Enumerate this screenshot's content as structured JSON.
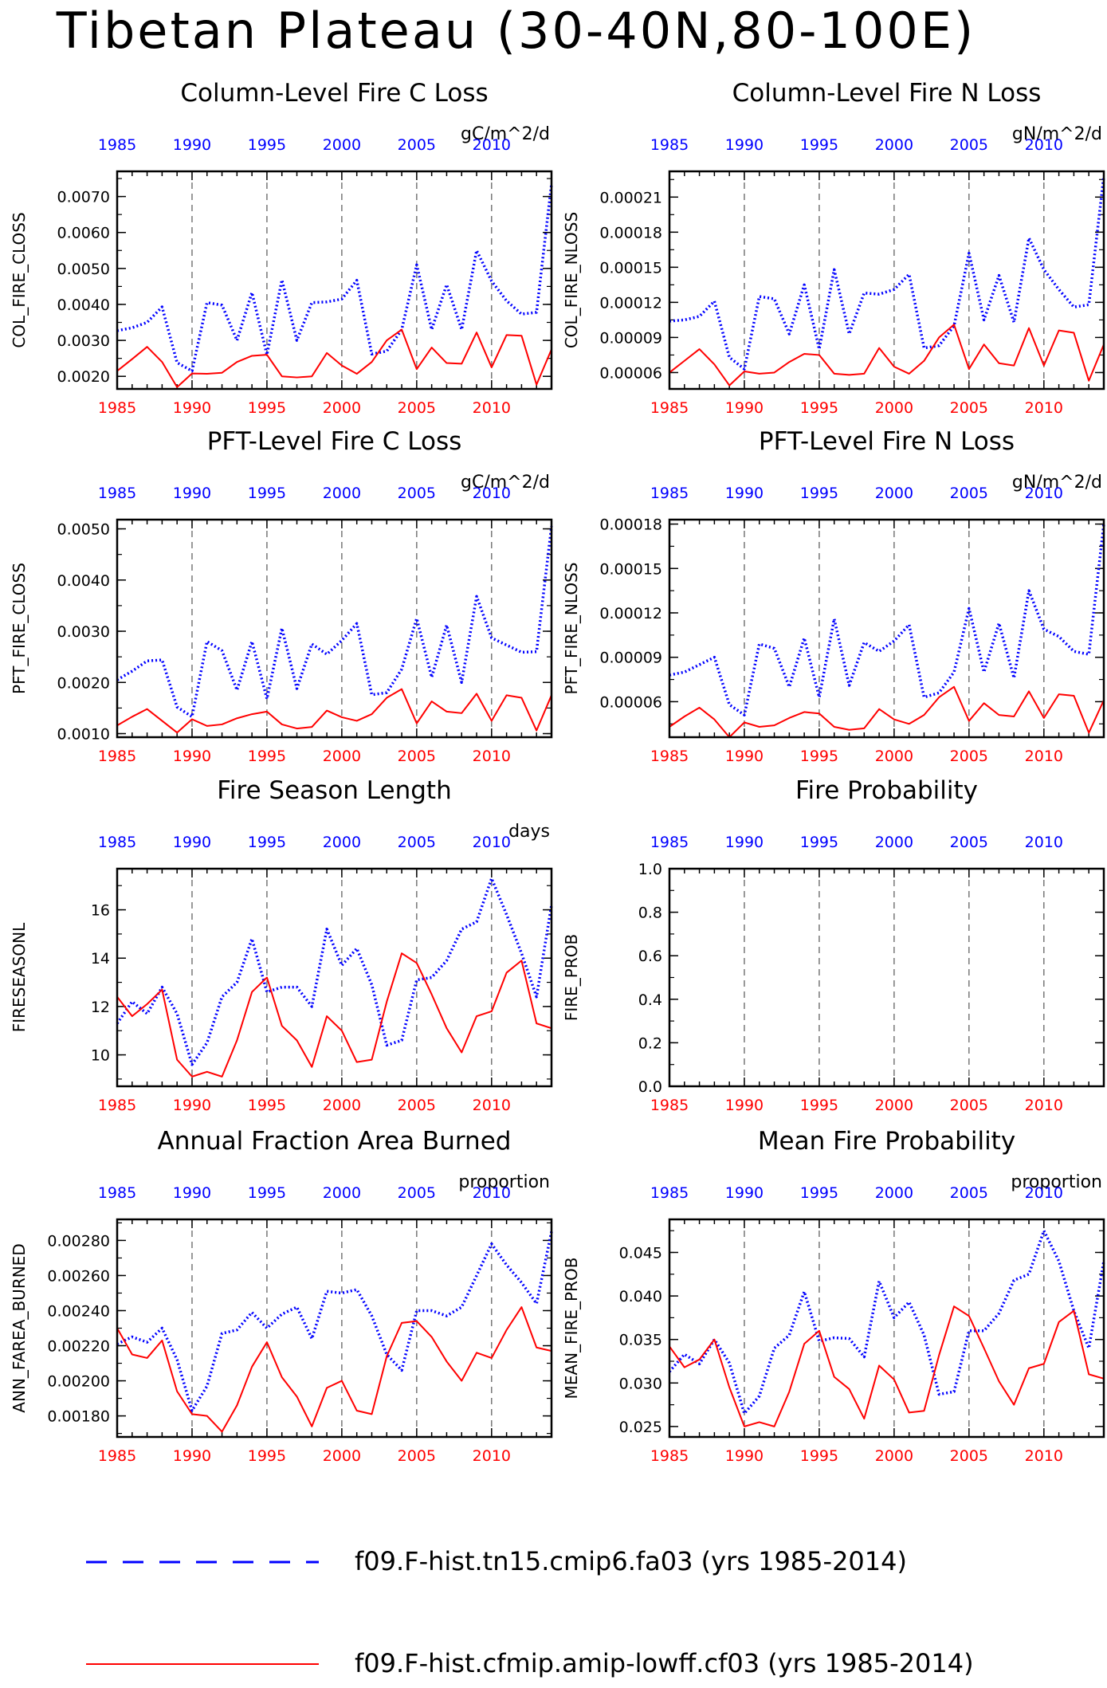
{
  "title": "Tibetan Plateau (30-40N,80-100E)",
  "years": [
    1985,
    1986,
    1987,
    1988,
    1989,
    1990,
    1991,
    1992,
    1993,
    1994,
    1995,
    1996,
    1997,
    1998,
    1999,
    2000,
    2001,
    2002,
    2003,
    2004,
    2005,
    2006,
    2007,
    2008,
    2009,
    2010,
    2011,
    2012,
    2013,
    2014
  ],
  "colors": {
    "case1": "#0000ff",
    "case2": "#ff0000",
    "axis": "#000000"
  },
  "legend": [
    {
      "label": "f09.F-hist.tn15.cmip6.fa03 (yrs 1985-2014)",
      "color": "#0000ff",
      "style": "dashed"
    },
    {
      "label": "f09.F-hist.cfmip.amip-lowff.cf03 (yrs 1985-2014)",
      "color": "#ff0000",
      "style": "solid"
    }
  ],
  "chart_data": [
    {
      "type": "line",
      "title": "Column-Level Fire C Loss",
      "units": "gC/m^2/d",
      "ylabel": "COL_FIRE_CLOSS",
      "xlim": [
        1985,
        2014
      ],
      "ylim": [
        0.00165,
        0.0077
      ],
      "yticks": [
        0.002,
        0.003,
        0.004,
        0.005,
        0.006,
        0.007
      ],
      "ytick_labels": [
        "0.0020",
        "0.0030",
        "0.0040",
        "0.0050",
        "0.0060",
        "0.0070"
      ],
      "xticks": [
        1985,
        1990,
        1995,
        2000,
        2005,
        2010
      ],
      "grid_x": [
        1990,
        1995,
        2000,
        2005,
        2010
      ],
      "series": [
        {
          "values": [
            0.00327,
            0.00335,
            0.0035,
            0.00393,
            0.00238,
            0.00215,
            0.00405,
            0.00398,
            0.003,
            0.00433,
            0.0026,
            0.00468,
            0.003,
            0.00405,
            0.00407,
            0.00415,
            0.00467,
            0.00262,
            0.0027,
            0.0033,
            0.0051,
            0.0033,
            0.00455,
            0.0033,
            0.0055,
            0.00465,
            0.0041,
            0.00373,
            0.00378,
            0.00735
          ]
        },
        {
          "values": [
            0.00215,
            0.00248,
            0.00282,
            0.0024,
            0.0017,
            0.00208,
            0.00207,
            0.0021,
            0.0024,
            0.00257,
            0.0026,
            0.002,
            0.00197,
            0.002,
            0.00265,
            0.0023,
            0.00207,
            0.0024,
            0.003,
            0.0033,
            0.0022,
            0.0028,
            0.00237,
            0.00235,
            0.00322,
            0.00225,
            0.00315,
            0.00313,
            0.00177,
            0.00275
          ]
        }
      ]
    },
    {
      "type": "line",
      "title": "Column-Level Fire N Loss",
      "units": "gN/m^2/d",
      "ylabel": "COL_FIRE_NLOSS",
      "xlim": [
        1985,
        2014
      ],
      "ylim": [
        4.6e-05,
        0.000232
      ],
      "yticks": [
        6e-05,
        9e-05,
        0.00012,
        0.00015,
        0.00018,
        0.00021
      ],
      "ytick_labels": [
        "0.00006",
        "0.00009",
        "0.00012",
        "0.00015",
        "0.00018",
        "0.00021"
      ],
      "xticks": [
        1985,
        1990,
        1995,
        2000,
        2005,
        2010
      ],
      "grid_x": [
        1990,
        1995,
        2000,
        2005,
        2010
      ],
      "series": [
        {
          "values": [
            0.000104,
            0.000105,
            0.000108,
            0.000121,
            7.3e-05,
            6.3e-05,
            0.000125,
            0.000123,
            9.3e-05,
            0.000135,
            8e-05,
            0.000148,
            9.3e-05,
            0.000128,
            0.000127,
            0.000131,
            0.000144,
            8.1e-05,
            8.3e-05,
            0.0001,
            0.000162,
            0.000105,
            0.000143,
            0.000103,
            0.000175,
            0.000148,
            0.000131,
            0.000116,
            0.000118,
            0.000228
          ]
        },
        {
          "values": [
            6e-05,
            7e-05,
            8e-05,
            6.7e-05,
            4.9e-05,
            6.1e-05,
            5.9e-05,
            6e-05,
            6.9e-05,
            7.6e-05,
            7.5e-05,
            5.9e-05,
            5.8e-05,
            5.9e-05,
            8.1e-05,
            6.5e-05,
            5.9e-05,
            7e-05,
            9e-05,
            0.000101,
            6.3e-05,
            8.4e-05,
            6.8e-05,
            6.6e-05,
            9.8e-05,
            6.6e-05,
            9.6e-05,
            9.4e-05,
            5.3e-05,
            8.4e-05
          ]
        }
      ]
    },
    {
      "type": "line",
      "title": "PFT-Level Fire C Loss",
      "units": "gC/m^2/d",
      "ylabel": "PFT_FIRE_CLOSS",
      "xlim": [
        1985,
        2014
      ],
      "ylim": [
        0.00093,
        0.00518
      ],
      "yticks": [
        0.001,
        0.002,
        0.003,
        0.004,
        0.005
      ],
      "ytick_labels": [
        "0.0010",
        "0.0020",
        "0.0030",
        "0.0040",
        "0.0050"
      ],
      "xticks": [
        1985,
        1990,
        1995,
        2000,
        2005,
        2010
      ],
      "grid_x": [
        1990,
        1995,
        2000,
        2005,
        2010
      ],
      "series": [
        {
          "values": [
            0.00205,
            0.00222,
            0.00242,
            0.00244,
            0.00152,
            0.00133,
            0.0028,
            0.00262,
            0.00185,
            0.0028,
            0.00168,
            0.00306,
            0.00188,
            0.00275,
            0.00255,
            0.00282,
            0.00315,
            0.00176,
            0.0018,
            0.00226,
            0.00325,
            0.0021,
            0.00312,
            0.002,
            0.00368,
            0.00287,
            0.00273,
            0.00259,
            0.0026,
            0.00505
          ]
        },
        {
          "values": [
            0.00116,
            0.00133,
            0.00148,
            0.00125,
            0.00102,
            0.00128,
            0.00115,
            0.00118,
            0.0013,
            0.00138,
            0.00143,
            0.00118,
            0.0011,
            0.00113,
            0.00145,
            0.00132,
            0.00125,
            0.00138,
            0.0017,
            0.00187,
            0.0012,
            0.00163,
            0.00143,
            0.0014,
            0.00178,
            0.00125,
            0.00175,
            0.0017,
            0.00106,
            0.00175
          ]
        }
      ]
    },
    {
      "type": "line",
      "title": "PFT-Level Fire N Loss",
      "units": "gN/m^2/d",
      "ylabel": "PFT_FIRE_NLOSS",
      "xlim": [
        1985,
        2014
      ],
      "ylim": [
        3.6e-05,
        0.000183
      ],
      "yticks": [
        6e-05,
        9e-05,
        0.00012,
        0.00015,
        0.00018
      ],
      "ytick_labels": [
        "0.00006",
        "0.00009",
        "0.00012",
        "0.00015",
        "0.00018"
      ],
      "xticks": [
        1985,
        1990,
        1995,
        2000,
        2005,
        2010
      ],
      "grid_x": [
        1990,
        1995,
        2000,
        2005,
        2010
      ],
      "series": [
        {
          "values": [
            7.8e-05,
            8e-05,
            8.5e-05,
            9e-05,
            5.8e-05,
            5.1e-05,
            9.9e-05,
            9.6e-05,
            7e-05,
            0.000103,
            6.3e-05,
            0.000116,
            7.1e-05,
            0.0001,
            9.4e-05,
            0.000101,
            0.000112,
            6.3e-05,
            6.6e-05,
            8e-05,
            0.000123,
            8e-05,
            0.000113,
            7.6e-05,
            0.000135,
            0.000109,
            0.000104,
            9.4e-05,
            9.2e-05,
            0.00018
          ]
        },
        {
          "values": [
            4.3e-05,
            5e-05,
            5.6e-05,
            4.8e-05,
            3.6e-05,
            4.6e-05,
            4.3e-05,
            4.4e-05,
            4.9e-05,
            5.3e-05,
            5.2e-05,
            4.3e-05,
            4.1e-05,
            4.2e-05,
            5.5e-05,
            4.8e-05,
            4.5e-05,
            5.1e-05,
            6.3e-05,
            7e-05,
            4.7e-05,
            5.9e-05,
            5.1e-05,
            5e-05,
            6.7e-05,
            4.9e-05,
            6.5e-05,
            6.4e-05,
            3.9e-05,
            6.1e-05
          ]
        }
      ]
    },
    {
      "type": "line",
      "title": "Fire Season Length",
      "units": "days",
      "ylabel": "FIRESEASONL",
      "xlim": [
        1985,
        2014
      ],
      "ylim": [
        8.7,
        17.7
      ],
      "yticks": [
        10,
        12,
        14,
        16
      ],
      "ytick_labels": [
        "10",
        "12",
        "14",
        "16"
      ],
      "xticks": [
        1985,
        1990,
        1995,
        2000,
        2005,
        2010
      ],
      "grid_x": [
        1990,
        1995,
        2000,
        2005,
        2010
      ],
      "series": [
        {
          "values": [
            11.3,
            12.2,
            11.7,
            12.8,
            11.7,
            9.6,
            10.5,
            12.4,
            13.0,
            14.8,
            12.6,
            12.8,
            12.8,
            12.0,
            15.2,
            13.7,
            14.4,
            12.9,
            10.4,
            10.6,
            13.1,
            13.2,
            13.9,
            15.2,
            15.5,
            17.3,
            15.8,
            14.2,
            12.4,
            16.2
          ]
        },
        {
          "values": [
            12.4,
            11.6,
            12.1,
            12.7,
            9.8,
            9.1,
            9.3,
            9.1,
            10.6,
            12.6,
            13.2,
            11.2,
            10.6,
            9.5,
            11.6,
            11.0,
            9.7,
            9.8,
            12.2,
            14.2,
            13.8,
            12.5,
            11.1,
            10.1,
            11.6,
            11.8,
            13.4,
            13.9,
            11.3,
            11.1
          ]
        }
      ]
    },
    {
      "type": "line",
      "title": "Fire Probability",
      "units": "",
      "ylabel": "FIRE_PROB",
      "xlim": [
        1985,
        2014
      ],
      "ylim": [
        0.0,
        1.0
      ],
      "yticks": [
        0.0,
        0.2,
        0.4,
        0.6,
        0.8,
        1.0
      ],
      "ytick_labels": [
        "0.0",
        "0.2",
        "0.4",
        "0.6",
        "0.8",
        "1.0"
      ],
      "xticks": [
        1985,
        1990,
        1995,
        2000,
        2005,
        2010
      ],
      "grid_x": [
        1990,
        1995,
        2000,
        2005,
        2010
      ],
      "series": []
    },
    {
      "type": "line",
      "title": "Annual Fraction Area Burned",
      "units": "proportion",
      "ylabel": "ANN_FAREA_BURNED",
      "xlim": [
        1985,
        2014
      ],
      "ylim": [
        0.00168,
        0.00292
      ],
      "yticks": [
        0.0018,
        0.002,
        0.0022,
        0.0024,
        0.0026,
        0.0028
      ],
      "ytick_labels": [
        "0.00180",
        "0.00200",
        "0.00220",
        "0.00240",
        "0.00260",
        "0.00280"
      ],
      "xticks": [
        1985,
        1990,
        1995,
        2000,
        2005,
        2010
      ],
      "grid_x": [
        1990,
        1995,
        2000,
        2005,
        2010
      ],
      "series": [
        {
          "values": [
            0.00221,
            0.00225,
            0.00222,
            0.0023,
            0.00212,
            0.00183,
            0.00197,
            0.00227,
            0.00229,
            0.00239,
            0.0023,
            0.00238,
            0.00242,
            0.00224,
            0.00251,
            0.0025,
            0.00252,
            0.00237,
            0.00215,
            0.00206,
            0.0024,
            0.0024,
            0.00237,
            0.00242,
            0.0026,
            0.00278,
            0.00266,
            0.00256,
            0.00244,
            0.00285
          ]
        },
        {
          "values": [
            0.0023,
            0.00215,
            0.00213,
            0.00223,
            0.00194,
            0.00181,
            0.0018,
            0.00171,
            0.00186,
            0.00208,
            0.00222,
            0.00202,
            0.00191,
            0.00174,
            0.00196,
            0.002,
            0.00183,
            0.00181,
            0.00214,
            0.00233,
            0.00234,
            0.00225,
            0.00211,
            0.002,
            0.00216,
            0.00213,
            0.00229,
            0.00242,
            0.00219,
            0.00217
          ]
        }
      ]
    },
    {
      "type": "line",
      "title": "Mean Fire Probability",
      "units": "proportion",
      "ylabel": "MEAN_FIRE_PROB",
      "xlim": [
        1985,
        2014
      ],
      "ylim": [
        0.0238,
        0.0488
      ],
      "yticks": [
        0.025,
        0.03,
        0.035,
        0.04,
        0.045
      ],
      "ytick_labels": [
        "0.025",
        "0.030",
        "0.035",
        "0.040",
        "0.045"
      ],
      "xticks": [
        1985,
        1990,
        1995,
        2000,
        2005,
        2010
      ],
      "grid_x": [
        1990,
        1995,
        2000,
        2005,
        2010
      ],
      "series": [
        {
          "values": [
            0.0313,
            0.0333,
            0.0322,
            0.035,
            0.0323,
            0.0265,
            0.0285,
            0.034,
            0.0355,
            0.0405,
            0.0348,
            0.0352,
            0.0351,
            0.033,
            0.0417,
            0.0375,
            0.0393,
            0.0355,
            0.0287,
            0.029,
            0.036,
            0.036,
            0.038,
            0.0418,
            0.0425,
            0.0475,
            0.044,
            0.0383,
            0.034,
            0.044
          ]
        },
        {
          "values": [
            0.0342,
            0.0318,
            0.0327,
            0.035,
            0.0295,
            0.025,
            0.0255,
            0.025,
            0.029,
            0.0345,
            0.036,
            0.0307,
            0.0293,
            0.0259,
            0.032,
            0.0304,
            0.0266,
            0.0268,
            0.0332,
            0.0388,
            0.0377,
            0.034,
            0.0302,
            0.0275,
            0.0317,
            0.0322,
            0.037,
            0.0383,
            0.031,
            0.0305
          ]
        }
      ]
    }
  ]
}
